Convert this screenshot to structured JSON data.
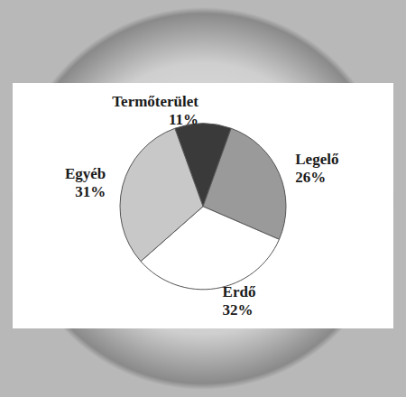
{
  "chart_data": {
    "type": "pie",
    "categories": [
      "Termőterület",
      "Legelő",
      "Erdő",
      "Egyéb"
    ],
    "values": [
      11,
      26,
      32,
      31
    ],
    "value_labels": [
      "11%",
      "26%",
      "32%",
      "31%"
    ],
    "colors": [
      "#3a3a3a",
      "#9a9a9a",
      "#ffffff",
      "#c8c8c8"
    ],
    "data_labels": true
  }
}
